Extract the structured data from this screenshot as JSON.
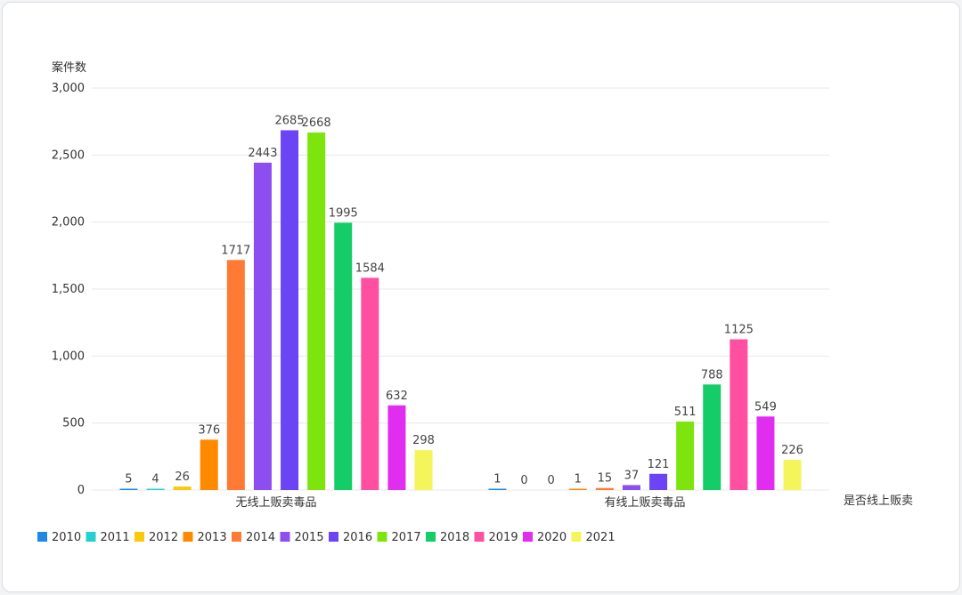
{
  "chart_data": {
    "type": "bar",
    "ylabel": "案件数",
    "xlabel": "是否线上贩卖",
    "ylim": [
      0,
      3000
    ],
    "yticks": [
      0,
      500,
      1000,
      1500,
      2000,
      2500,
      3000
    ],
    "ytick_labels": [
      "0",
      "500",
      "1,000",
      "1,500",
      "2,000",
      "2,500",
      "3,000"
    ],
    "categories": [
      "无线上贩卖毒品",
      "有线上贩卖毒品"
    ],
    "grid": true,
    "legend_position": "bottom-left",
    "series": [
      {
        "name": "2010",
        "color": "#1e88e5",
        "values": [
          5,
          1
        ]
      },
      {
        "name": "2011",
        "color": "#26d0ce",
        "values": [
          4,
          0
        ]
      },
      {
        "name": "2012",
        "color": "#fcc80a",
        "values": [
          26,
          0
        ]
      },
      {
        "name": "2013",
        "color": "#ff8a00",
        "values": [
          376,
          1
        ]
      },
      {
        "name": "2014",
        "color": "#ff7a33",
        "values": [
          1717,
          15
        ]
      },
      {
        "name": "2015",
        "color": "#8d4ef0",
        "values": [
          2443,
          37
        ]
      },
      {
        "name": "2016",
        "color": "#6b45f5",
        "values": [
          2685,
          121
        ]
      },
      {
        "name": "2017",
        "color": "#7ee40d",
        "values": [
          2668,
          511
        ]
      },
      {
        "name": "2018",
        "color": "#14cc68",
        "values": [
          1995,
          788
        ]
      },
      {
        "name": "2019",
        "color": "#ff4fa0",
        "values": [
          1584,
          1125
        ]
      },
      {
        "name": "2020",
        "color": "#e12df0",
        "values": [
          632,
          549
        ]
      },
      {
        "name": "2021",
        "color": "#f4f55a",
        "values": [
          298,
          226
        ]
      }
    ]
  }
}
